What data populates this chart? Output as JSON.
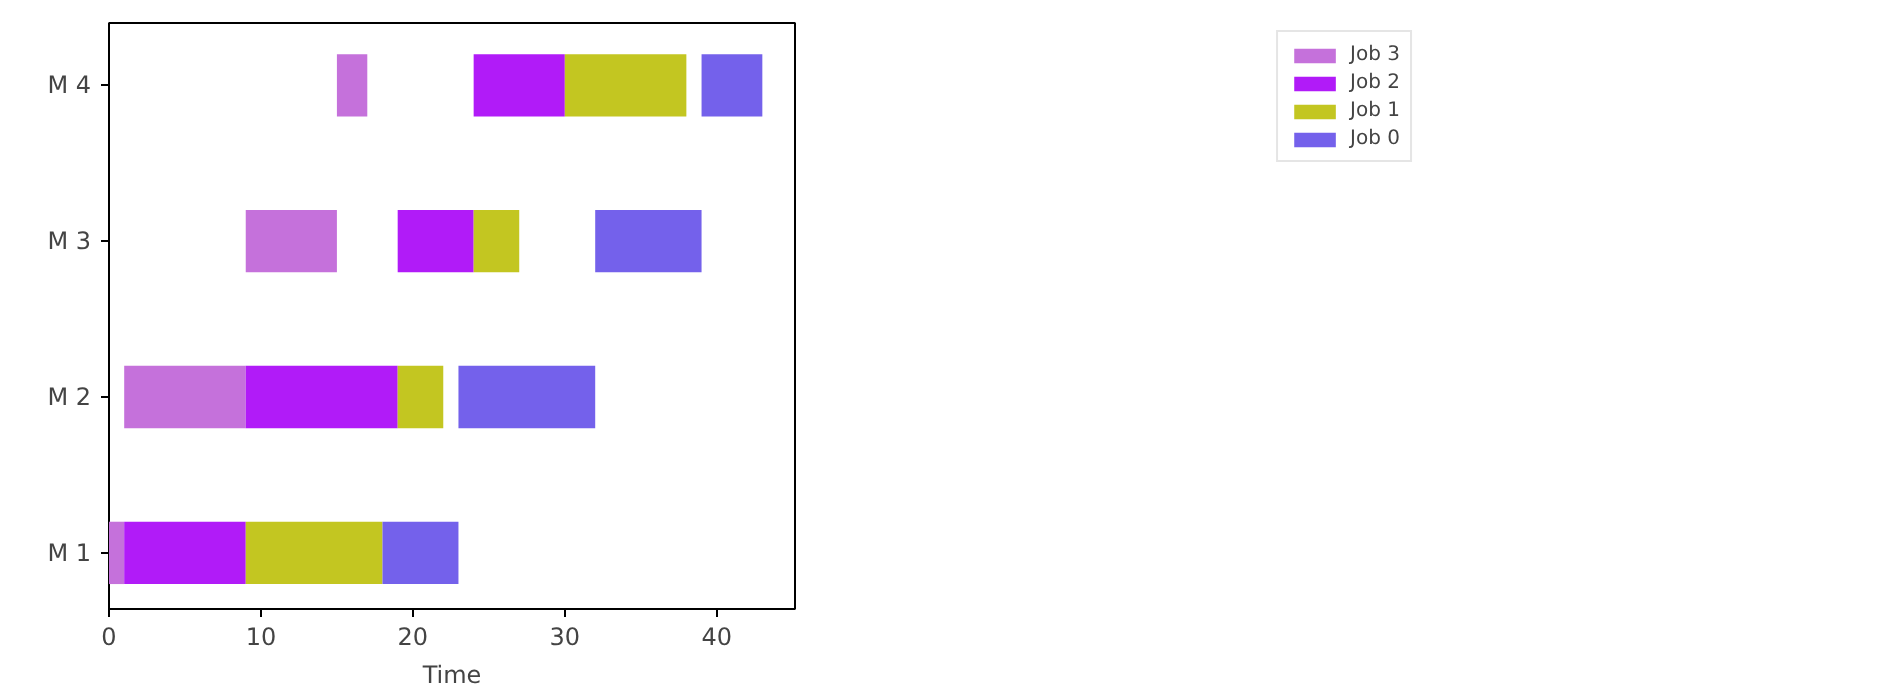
{
  "chart_data": {
    "type": "bar",
    "orientation": "horizontal",
    "xlabel": "Time",
    "categories": [
      "M 4",
      "M 3",
      "M 2",
      "M 1"
    ],
    "series": [
      {
        "name": "Job 3",
        "color": "#c571db",
        "base": [
          15,
          9,
          1,
          0
        ],
        "values": [
          2,
          6,
          8,
          1
        ]
      },
      {
        "name": "Job 2",
        "color": "#b11bf8",
        "base": [
          24,
          19,
          9,
          1
        ],
        "values": [
          6,
          5,
          10,
          8
        ]
      },
      {
        "name": "Job 1",
        "color": "#c3c621",
        "base": [
          30,
          24,
          19,
          9
        ],
        "values": [
          8,
          3,
          3,
          9
        ]
      },
      {
        "name": "Job 0",
        "color": "#7461eb",
        "base": [
          39,
          32,
          23,
          18
        ],
        "values": [
          4,
          7,
          9,
          5
        ]
      }
    ],
    "xlim": [
      0,
      45.15
    ],
    "xticks": [
      0,
      10,
      20,
      30,
      40
    ],
    "grid": false,
    "legend": "top right"
  }
}
